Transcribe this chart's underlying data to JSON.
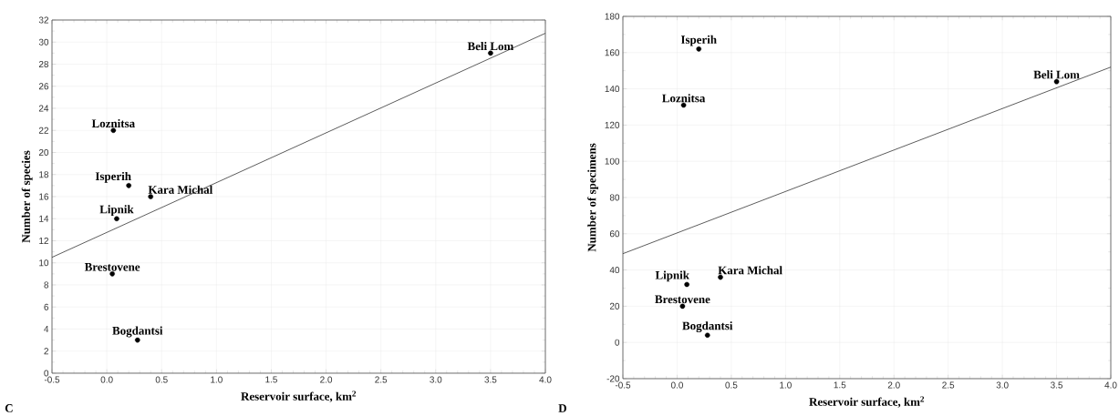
{
  "chart_data": [
    {
      "type": "scatter",
      "xlabel": "Reservoir surface, km$^{2}$",
      "ylabel": "Number of species",
      "xlim": [
        -0.5,
        4.0
      ],
      "xticks": [
        {
          "value": -0.5,
          "label": "-0.5"
        },
        {
          "value": 0,
          "label": "0.0"
        },
        {
          "value": 0.5,
          "label": "0.5"
        },
        {
          "value": 1,
          "label": "1.0"
        },
        {
          "value": 1.5,
          "label": "1.5"
        },
        {
          "value": 2,
          "label": "2.0"
        },
        {
          "value": 2.5,
          "label": "2.5"
        },
        {
          "value": 3,
          "label": "3.0"
        },
        {
          "value": 3.5,
          "label": "3.5"
        },
        {
          "value": 4,
          "label": "4.0"
        }
      ],
      "ylim": [
        0,
        32
      ],
      "yticks": [
        0,
        2,
        4,
        6,
        8,
        10,
        12,
        14,
        16,
        18,
        20,
        22,
        24,
        26,
        28,
        30,
        32
      ],
      "grid": true,
      "marker": "circle",
      "series": [
        {
          "type": "scatter",
          "color": "#000000",
          "x": [
            3.5,
            0.06,
            0.2,
            0.4,
            0.09,
            0.05,
            0.28
          ],
          "values": [
            29,
            22,
            17,
            16,
            14,
            9,
            3
          ]
        },
        {
          "type": "line",
          "marker": "none",
          "color": "#333333",
          "x": [
            -0.5,
            4.0
          ],
          "values": [
            10.5,
            30.8
          ]
        }
      ],
      "annotations": [
        {
          "text": "Beli Lom",
          "x": 3.5,
          "y": 29
        },
        {
          "text": "Loznitsa",
          "x": 0.06,
          "y": 22
        },
        {
          "text": "Isperih",
          "x": 0.2,
          "y": 17
        },
        {
          "text": "Kara Michal",
          "x": 0.4,
          "y": 16
        },
        {
          "text": "Lipnik",
          "x": 0.09,
          "y": 14
        },
        {
          "text": "Brestovene",
          "x": 0.05,
          "y": 9
        },
        {
          "text": "Bogdantsi",
          "x": 0.28,
          "y": 3
        },
        "C"
      ]
    },
    {
      "type": "scatter",
      "xlabel": "Reservoir surface, km$^{2}$",
      "ylabel": "Number of specimens",
      "xlim": [
        -0.5,
        4.0
      ],
      "xticks": [
        {
          "value": -0.5,
          "label": "-0.5"
        },
        {
          "value": 0,
          "label": "0.0"
        },
        {
          "value": 0.5,
          "label": "0.5"
        },
        {
          "value": 1,
          "label": "1.0"
        },
        {
          "value": 1.5,
          "label": "1.5"
        },
        {
          "value": 2,
          "label": "2.0"
        },
        {
          "value": 2.5,
          "label": "2.5"
        },
        {
          "value": 3,
          "label": "3.0"
        },
        {
          "value": 3.5,
          "label": "3.5"
        },
        {
          "value": 4,
          "label": "4.0"
        }
      ],
      "ylim": [
        -20,
        180
      ],
      "yticks": [
        -20,
        0,
        20,
        40,
        60,
        80,
        100,
        120,
        140,
        160,
        180
      ],
      "grid": true,
      "marker": "circle",
      "series": [
        {
          "type": "scatter",
          "color": "#000000",
          "x": [
            0.2,
            3.5,
            0.06,
            0.4,
            0.09,
            0.05,
            0.28
          ],
          "values": [
            162,
            144,
            131,
            36,
            32,
            20,
            4
          ]
        },
        {
          "type": "line",
          "marker": "none",
          "color": "#333333",
          "x": [
            -0.5,
            4.0
          ],
          "values": [
            49,
            152
          ]
        }
      ],
      "annotations": [
        {
          "text": "Isperih",
          "x": 0.2,
          "y": 162
        },
        {
          "text": "Beli Lom",
          "x": 3.5,
          "y": 144
        },
        {
          "text": "Loznitsa",
          "x": 0.06,
          "y": 131
        },
        {
          "text": "Kara Michal",
          "x": 0.4,
          "y": 36
        },
        {
          "text": "Lipnik",
          "x": 0.09,
          "y": 32
        },
        {
          "text": "Brestovene",
          "x": 0.05,
          "y": 20
        },
        {
          "text": "Bogdantsi",
          "x": 0.28,
          "y": 4
        },
        "D"
      ]
    }
  ]
}
